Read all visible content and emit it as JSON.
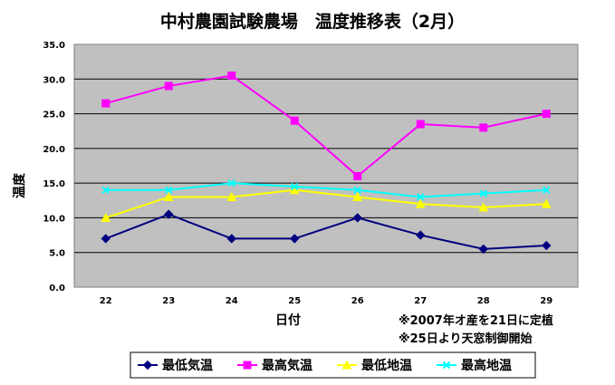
{
  "chart_data": {
    "type": "line",
    "title": "中村農園試験農場　温度推移表（2月）",
    "xlabel": "日付",
    "ylabel": "温度",
    "categories": [
      "22",
      "23",
      "24",
      "25",
      "26",
      "27",
      "28",
      "29"
    ],
    "ylim": [
      0,
      35
    ],
    "yticks": [
      "0.0",
      "5.0",
      "10.0",
      "15.0",
      "20.0",
      "25.0",
      "30.0",
      "35.0"
    ],
    "grid": true,
    "legend_position": "bottom",
    "series": [
      {
        "name": "最低気温",
        "values": [
          7.0,
          10.5,
          7.0,
          7.0,
          10.0,
          7.5,
          5.5,
          6.0
        ],
        "color": "#000080",
        "marker": "diamond"
      },
      {
        "name": "最高気温",
        "values": [
          26.5,
          29.0,
          30.5,
          24.0,
          16.0,
          23.5,
          23.0,
          25.0
        ],
        "color": "#ff00ff",
        "marker": "square"
      },
      {
        "name": "最低地温",
        "values": [
          10.0,
          13.0,
          13.0,
          14.0,
          13.0,
          12.0,
          11.5,
          12.0
        ],
        "color": "#ffff00",
        "marker": "triangle"
      },
      {
        "name": "最高地温",
        "values": [
          14.0,
          14.0,
          15.0,
          14.5,
          14.0,
          13.0,
          13.5,
          14.0
        ],
        "color": "#00ffff",
        "marker": "x"
      }
    ],
    "annotations": [
      "※2007年オ産を21日に定植",
      "※25日より天窓制御開始"
    ],
    "plot_background": "#c0c0c0"
  }
}
